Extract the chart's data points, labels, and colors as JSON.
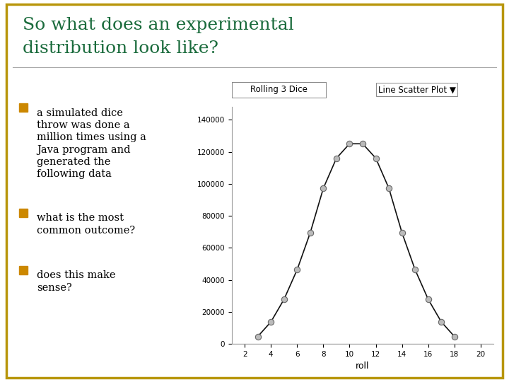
{
  "title_line1": "So what does an experimental",
  "title_line2": "distribution look like?",
  "title_color": "#1a6b3c",
  "title_fontsize": 18,
  "background_color": "#ffffff",
  "border_color": "#b8960c",
  "bullet_color": "#cc8800",
  "bullet_text_color": "#000000",
  "bullet1": "a simulated dice\nthrow was done a\nmillion times using a\nJava program and\ngenerated the\nfollowing data",
  "bullet2": "what is the most\ncommon outcome?",
  "bullet3": "does this make\nsense?",
  "chart_title": "Rolling 3 Dice",
  "chart_subtitle": "Line Scatter Plot ▼",
  "xlabel": "roll",
  "x_data": [
    3,
    4,
    5,
    6,
    7,
    8,
    9,
    10,
    11,
    12,
    13,
    14,
    15,
    16,
    17,
    18
  ],
  "y_data": [
    4600,
    13700,
    27800,
    46300,
    69400,
    97200,
    116000,
    125000,
    125000,
    116000,
    97200,
    69400,
    46300,
    27800,
    13700,
    4600
  ],
  "xticks": [
    2,
    4,
    6,
    8,
    10,
    12,
    14,
    16,
    18,
    20
  ],
  "yticks": [
    0,
    20000,
    40000,
    60000,
    80000,
    100000,
    120000,
    140000
  ],
  "ylim": [
    0,
    148000
  ],
  "xlim": [
    1,
    21
  ],
  "line_color": "#111111",
  "marker_color": "#bbbbbb",
  "marker_edge_color": "#666666",
  "marker_size": 6,
  "line_width": 1.2
}
